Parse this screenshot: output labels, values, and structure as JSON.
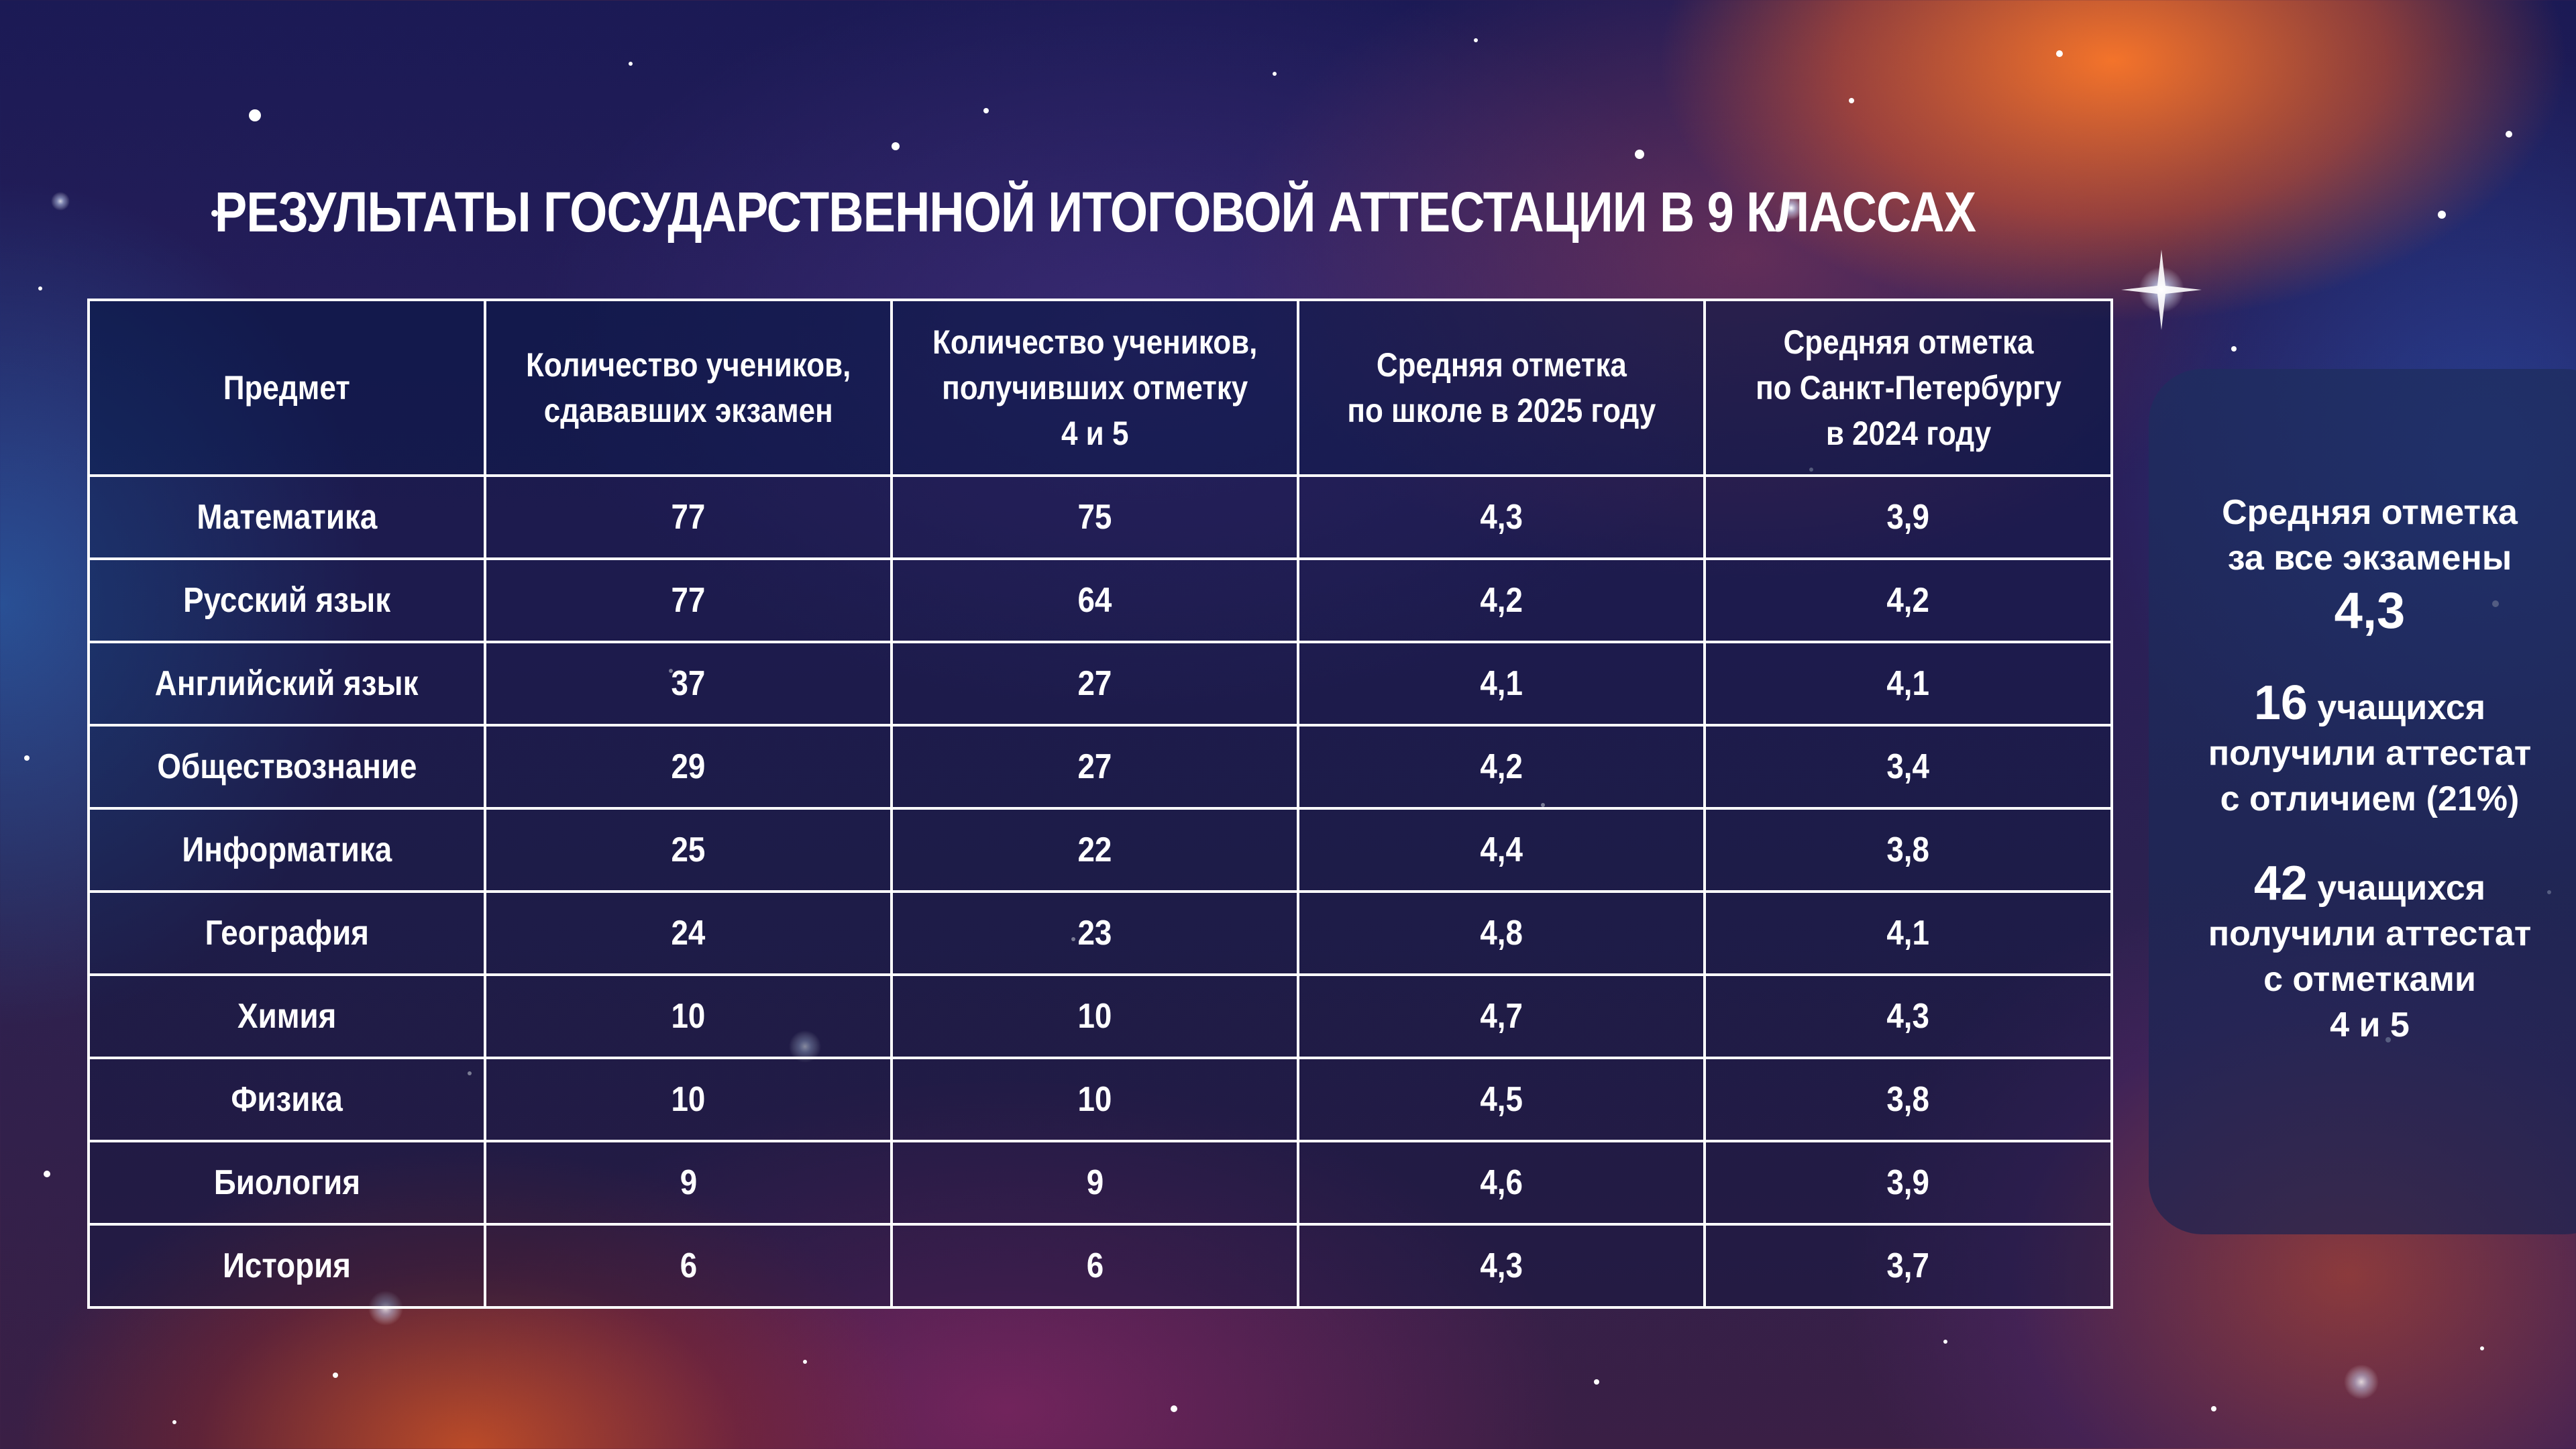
{
  "title": "РЕЗУЛЬТАТЫ ГОСУДАРСТВЕННОЙ ИТОГОВОЙ АТТЕСТАЦИИ В 9 КЛАССАХ",
  "table": {
    "headers": [
      [
        "Предмет"
      ],
      [
        "Количество учеников,",
        "сдававших экзамен"
      ],
      [
        "Количество учеников,",
        "получивших отметку",
        "4 и 5"
      ],
      [
        "Средняя отметка",
        "по школе в 2025 году"
      ],
      [
        "Средняя отметка",
        "по Санкт-Петербургу",
        "в 2024 году"
      ]
    ],
    "rows": [
      [
        "Математика",
        "77",
        "75",
        "4,3",
        "3,9"
      ],
      [
        "Русский язык",
        "77",
        "64",
        "4,2",
        "4,2"
      ],
      [
        "Английский язык",
        "37",
        "27",
        "4,1",
        "4,1"
      ],
      [
        "Обществознание",
        "29",
        "27",
        "4,2",
        "3,4"
      ],
      [
        "Информатика",
        "25",
        "22",
        "4,4",
        "3,8"
      ],
      [
        "География",
        "24",
        "23",
        "4,8",
        "4,1"
      ],
      [
        "Химия",
        "10",
        "10",
        "4,7",
        "4,3"
      ],
      [
        "Физика",
        "10",
        "10",
        "4,5",
        "3,8"
      ],
      [
        "Биология",
        "9",
        "9",
        "4,6",
        "3,9"
      ],
      [
        "История",
        "6",
        "6",
        "4,3",
        "3,7"
      ]
    ]
  },
  "summary": {
    "avg_label_1": "Средняя отметка",
    "avg_label_2": "за все экзамены",
    "avg_value": "4,3",
    "honors_count": "16",
    "honors_line_1": "учащихся",
    "honors_line_2": "получили аттестат",
    "honors_line_3": "с отличием (21%)",
    "good_count": "42",
    "good_line_1": "учащихся",
    "good_line_2": "получили аттестат",
    "good_line_3": "с отметками",
    "good_line_4": "4 и 5"
  }
}
